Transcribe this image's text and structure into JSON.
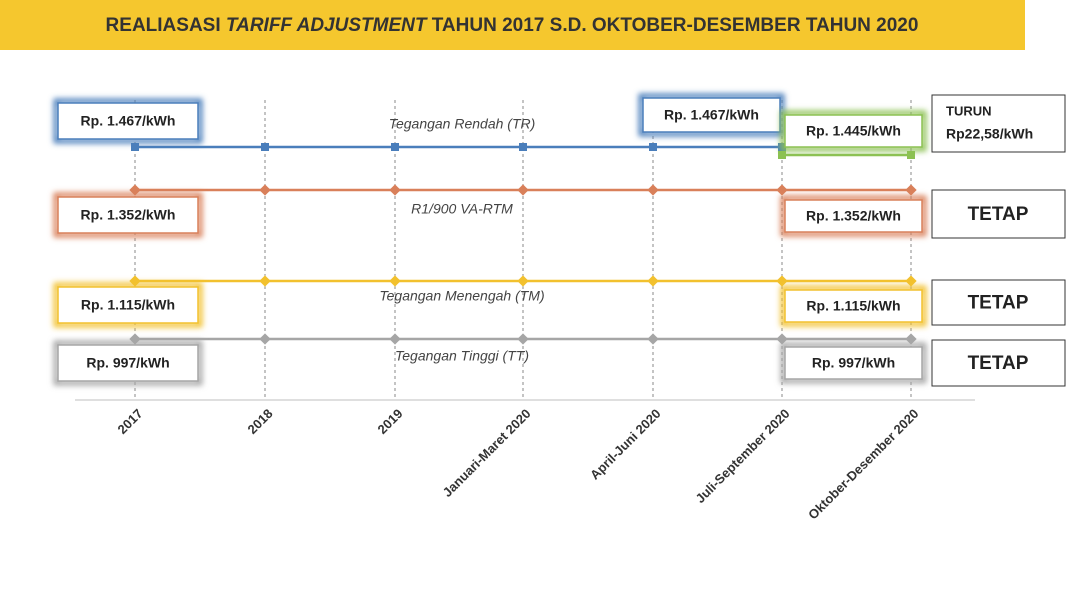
{
  "header": {
    "prefix": "REALIASASI",
    "emphasis": "TARIFF ADJUSTMENT",
    "suffix": "TAHUN 2017 S.D. OKTOBER-DESEMBER TAHUN 2020"
  },
  "periods": [
    "2017",
    "2018",
    "2019",
    "Januari-Maret 2020",
    "April-Juni 2020",
    "Juli-September 2020",
    "Oktober-Desember 2020"
  ],
  "lines": [
    {
      "name": "Tegangan Rendah (TR)",
      "color": "#4a7ebb",
      "start_label": "Rp. 1.467/kWh",
      "mid_label": "Rp. 1.467/kWh",
      "end_label": "Rp. 1.445/kWh",
      "end_color": "#8cc152",
      "status": [
        "TURUN",
        "Rp22,58/kWh"
      ]
    },
    {
      "name": "R1/900 VA-RTM",
      "color": "#d9805a",
      "start_label": "Rp. 1.352/kWh",
      "end_label": "Rp. 1.352/kWh",
      "status": [
        "TETAP"
      ]
    },
    {
      "name": "Tegangan Menengah (TM)",
      "color": "#f2c12e",
      "start_label": "Rp. 1.115/kWh",
      "end_label": "Rp. 1.115/kWh",
      "status": [
        "TETAP"
      ]
    },
    {
      "name": "Tegangan Tinggi (TT)",
      "color": "#a6a6a6",
      "start_label": "Rp. 997/kWh",
      "end_label": "Rp. 997/kWh",
      "status": [
        "TETAP"
      ]
    }
  ]
}
